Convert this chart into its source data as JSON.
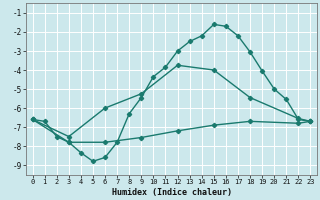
{
  "xlabel": "Humidex (Indice chaleur)",
  "bg_color": "#cce8ec",
  "grid_color": "#ffffff",
  "line_color": "#1a7a6e",
  "xlim": [
    -0.5,
    23.5
  ],
  "ylim": [
    -9.5,
    -0.5
  ],
  "xticks": [
    0,
    1,
    2,
    3,
    4,
    5,
    6,
    7,
    8,
    9,
    10,
    11,
    12,
    13,
    14,
    15,
    16,
    17,
    18,
    19,
    20,
    21,
    22,
    23
  ],
  "yticks": [
    -9,
    -8,
    -7,
    -6,
    -5,
    -4,
    -3,
    -2,
    -1
  ],
  "line1_x": [
    0,
    1,
    2,
    3,
    4,
    5,
    6,
    7,
    8,
    9,
    10,
    11,
    12,
    13,
    14,
    15,
    16,
    17,
    18,
    19,
    20,
    21,
    22,
    23
  ],
  "line1_y": [
    -6.6,
    -6.7,
    -7.5,
    -7.8,
    -8.35,
    -8.8,
    -8.6,
    -7.8,
    -6.3,
    -5.45,
    -4.35,
    -3.85,
    -3.0,
    -2.5,
    -2.2,
    -1.6,
    -1.7,
    -2.2,
    -3.05,
    -4.05,
    -5.0,
    -5.55,
    -6.6,
    -6.7
  ],
  "line2_x": [
    0,
    3,
    6,
    9,
    12,
    15,
    18,
    22,
    23
  ],
  "line2_y": [
    -6.6,
    -7.5,
    -6.0,
    -5.25,
    -3.75,
    -4.0,
    -5.45,
    -6.55,
    -6.7
  ],
  "line3_x": [
    0,
    3,
    6,
    9,
    12,
    15,
    18,
    22,
    23
  ],
  "line3_y": [
    -6.6,
    -7.8,
    -7.8,
    -7.55,
    -7.2,
    -6.9,
    -6.7,
    -6.8,
    -6.7
  ]
}
